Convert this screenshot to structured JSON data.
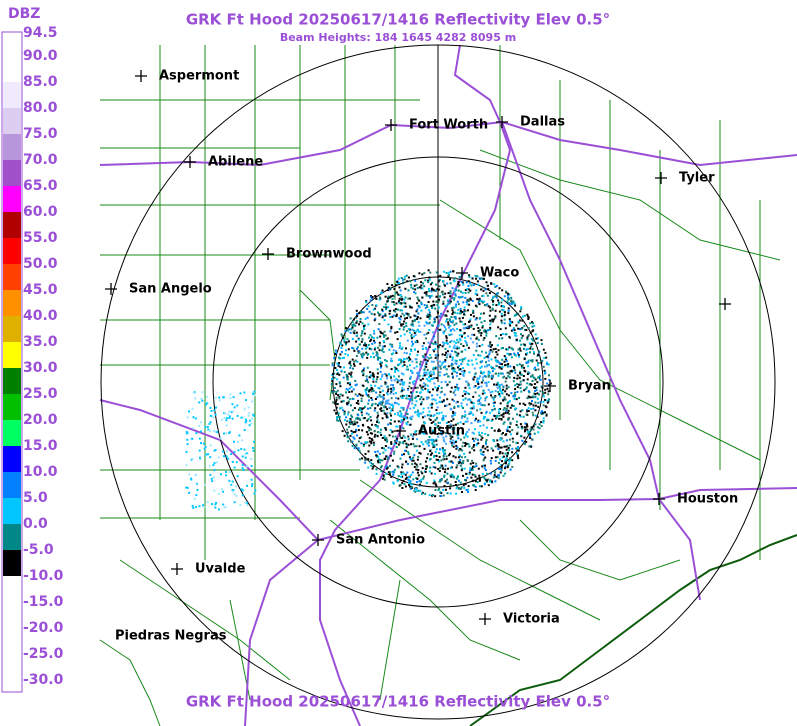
{
  "header": {
    "title": "GRK Ft Hood 20250617/1416 Reflectivity Elev 0.5°",
    "subtitle": "Beam Heights: 184 1645 4282 8095 m",
    "footer_title": "GRK Ft Hood 20250617/1416 Reflectivity Elev 0.5°"
  },
  "legend": {
    "unit": "DBZ",
    "labels": [
      "94.5",
      "90.0",
      "85.0",
      "80.0",
      "75.0",
      "70.0",
      "65.0",
      "60.0",
      "55.0",
      "50.0",
      "45.0",
      "40.0",
      "35.0",
      "30.0",
      "25.0",
      "20.0",
      "15.0",
      "10.0",
      "5.0",
      "0.0",
      "-5.0",
      "-10.0",
      "-15.0",
      "-20.0",
      "-25.0",
      "-30.0"
    ],
    "colors": [
      "#ffffff",
      "#ffffff",
      "#f0eaff",
      "#ddcdf0",
      "#b896dc",
      "#a050c8",
      "#ff00ff",
      "#b00000",
      "#ff0000",
      "#ff4000",
      "#ff9000",
      "#e0b000",
      "#ffff00",
      "#008000",
      "#00c000",
      "#00ff60",
      "#0000ff",
      "#0080ff",
      "#00c8ff",
      "#008888",
      "#000000",
      "#ffffff",
      "#ffffff",
      "#ffffff",
      "#ffffff"
    ]
  },
  "cities": [
    {
      "label": "Aspermont"
    },
    {
      "label": "Abilene"
    },
    {
      "label": "Fort Worth"
    },
    {
      "label": "Dallas"
    },
    {
      "label": "Tyler"
    },
    {
      "label": "Brownwood"
    },
    {
      "label": "Waco"
    },
    {
      "label": "San Angelo"
    },
    {
      "label": "Bryan"
    },
    {
      "label": "Austin"
    },
    {
      "label": "Houston"
    },
    {
      "label": "San Antonio"
    },
    {
      "label": "Uvalde"
    },
    {
      "label": "Victoria"
    },
    {
      "label": "Piedras Negras"
    }
  ]
}
